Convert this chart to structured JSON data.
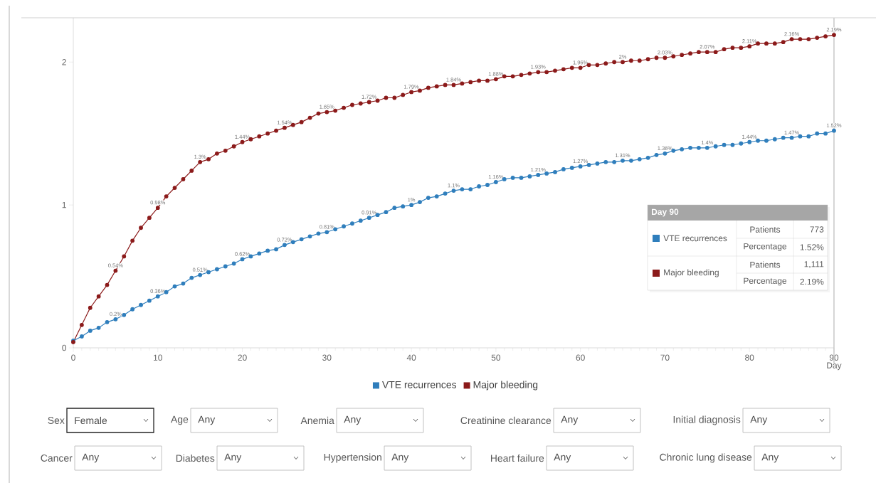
{
  "chart_data": {
    "type": "line",
    "x": [
      0,
      1,
      2,
      3,
      4,
      5,
      6,
      7,
      8,
      9,
      10,
      11,
      12,
      13,
      14,
      15,
      16,
      17,
      18,
      19,
      20,
      21,
      22,
      23,
      24,
      25,
      26,
      27,
      28,
      29,
      30,
      31,
      32,
      33,
      34,
      35,
      36,
      37,
      38,
      39,
      40,
      41,
      42,
      43,
      44,
      45,
      46,
      47,
      48,
      49,
      50,
      51,
      52,
      53,
      54,
      55,
      56,
      57,
      58,
      59,
      60,
      61,
      62,
      63,
      64,
      65,
      66,
      67,
      68,
      69,
      70,
      71,
      72,
      73,
      74,
      75,
      76,
      77,
      78,
      79,
      80,
      81,
      82,
      83,
      84,
      85,
      86,
      87,
      88,
      89,
      90
    ],
    "series": [
      {
        "name": "VTE recurrences",
        "color": "#2f7ebc",
        "values": [
          0.05,
          0.08,
          0.12,
          0.14,
          0.18,
          0.2,
          0.23,
          0.27,
          0.3,
          0.33,
          0.36,
          0.39,
          0.43,
          0.45,
          0.49,
          0.51,
          0.53,
          0.55,
          0.57,
          0.59,
          0.62,
          0.64,
          0.66,
          0.68,
          0.69,
          0.72,
          0.74,
          0.76,
          0.78,
          0.8,
          0.81,
          0.83,
          0.85,
          0.87,
          0.89,
          0.91,
          0.93,
          0.95,
          0.98,
          0.99,
          1,
          1.02,
          1.05,
          1.06,
          1.08,
          1.1,
          1.11,
          1.11,
          1.13,
          1.14,
          1.16,
          1.18,
          1.19,
          1.19,
          1.2,
          1.21,
          1.22,
          1.23,
          1.25,
          1.26,
          1.27,
          1.28,
          1.29,
          1.3,
          1.3,
          1.31,
          1.31,
          1.32,
          1.33,
          1.35,
          1.36,
          1.38,
          1.39,
          1.4,
          1.4,
          1.4,
          1.41,
          1.42,
          1.42,
          1.43,
          1.44,
          1.45,
          1.45,
          1.46,
          1.47,
          1.47,
          1.48,
          1.48,
          1.5,
          1.5,
          1.52
        ],
        "value_labels": [
          null,
          null,
          null,
          null,
          null,
          "0.2%",
          null,
          null,
          null,
          null,
          "0.36%",
          null,
          null,
          null,
          null,
          "0.51%",
          null,
          null,
          null,
          null,
          "0.62%",
          null,
          null,
          null,
          null,
          "0.72%",
          null,
          null,
          null,
          null,
          "0.81%",
          null,
          null,
          null,
          null,
          "0.91%",
          null,
          null,
          null,
          null,
          "1%",
          null,
          null,
          null,
          null,
          "1.1%",
          null,
          null,
          null,
          null,
          "1.16%",
          null,
          null,
          null,
          null,
          "1.21%",
          null,
          null,
          null,
          null,
          "1.27%",
          null,
          null,
          null,
          null,
          "1.31%",
          null,
          null,
          null,
          null,
          "1.36%",
          null,
          null,
          null,
          null,
          "1.4%",
          null,
          null,
          null,
          null,
          "1.44%",
          null,
          null,
          null,
          null,
          "1.47%",
          null,
          null,
          null,
          null,
          "1.52%"
        ]
      },
      {
        "name": "Major bleeding",
        "color": "#8b1a1a",
        "values": [
          0.04,
          0.16,
          0.28,
          0.36,
          0.44,
          0.54,
          0.64,
          0.75,
          0.84,
          0.91,
          0.98,
          1.06,
          1.12,
          1.18,
          1.24,
          1.3,
          1.32,
          1.36,
          1.38,
          1.41,
          1.44,
          1.46,
          1.48,
          1.5,
          1.52,
          1.54,
          1.56,
          1.58,
          1.61,
          1.64,
          1.65,
          1.66,
          1.68,
          1.7,
          1.71,
          1.72,
          1.73,
          1.75,
          1.75,
          1.77,
          1.79,
          1.8,
          1.82,
          1.83,
          1.84,
          1.84,
          1.85,
          1.86,
          1.87,
          1.87,
          1.88,
          1.9,
          1.9,
          1.91,
          1.92,
          1.93,
          1.93,
          1.94,
          1.95,
          1.96,
          1.96,
          1.98,
          1.98,
          1.99,
          2.0,
          2.0,
          2.01,
          2.01,
          2.02,
          2.03,
          2.03,
          2.04,
          2.05,
          2.06,
          2.07,
          2.07,
          2.07,
          2.09,
          2.1,
          2.1,
          2.11,
          2.13,
          2.13,
          2.13,
          2.14,
          2.16,
          2.16,
          2.16,
          2.17,
          2.18,
          2.19
        ],
        "value_labels": [
          null,
          null,
          null,
          null,
          null,
          "0.54%",
          null,
          null,
          null,
          null,
          "0.98%",
          null,
          null,
          null,
          null,
          "1.3%",
          null,
          null,
          null,
          null,
          "1.44%",
          null,
          null,
          null,
          null,
          "1.54%",
          null,
          null,
          null,
          null,
          "1.65%",
          null,
          null,
          null,
          null,
          "1.72%",
          null,
          null,
          null,
          null,
          "1.79%",
          null,
          null,
          null,
          null,
          "1.84%",
          null,
          null,
          null,
          null,
          "1.88%",
          null,
          null,
          null,
          null,
          "1.93%",
          null,
          null,
          null,
          null,
          "1.96%",
          null,
          null,
          null,
          null,
          "2%",
          null,
          null,
          null,
          null,
          "2.03%",
          null,
          null,
          null,
          null,
          "2.07%",
          null,
          null,
          null,
          null,
          "2.11%",
          null,
          null,
          null,
          null,
          "2.16%",
          null,
          null,
          null,
          null,
          "2.19%"
        ]
      }
    ],
    "xlabel": "Day",
    "xlim": [
      0,
      90
    ],
    "xticks": [
      0,
      10,
      20,
      30,
      40,
      50,
      60,
      70,
      80,
      90
    ],
    "ylim": [
      0,
      2.31
    ],
    "yticks": [
      0,
      1,
      2
    ],
    "ref_lines": [
      {
        "axis": "x",
        "value": 90,
        "color": "#c8c8c8"
      }
    ],
    "annotations": [
      "Day 90",
      "Patients",
      "773",
      "Percentage",
      "1.52%",
      "Patients",
      "1,111",
      "Percentage",
      "2.19%",
      "Sex",
      "Female",
      "Age",
      "Any",
      "Anemia",
      "Any",
      "Creatinine clearance",
      "Any",
      "Initial diagnosis",
      "Any",
      "Cancer",
      "Any",
      "Diabetes",
      "Any",
      "Hypertension",
      "Any",
      "Heart failure",
      "Any",
      "Chronic lung disease",
      "Any"
    ],
    "legend": "bottom",
    "marker": "circle",
    "line_style": "solid",
    "grid": false
  }
}
